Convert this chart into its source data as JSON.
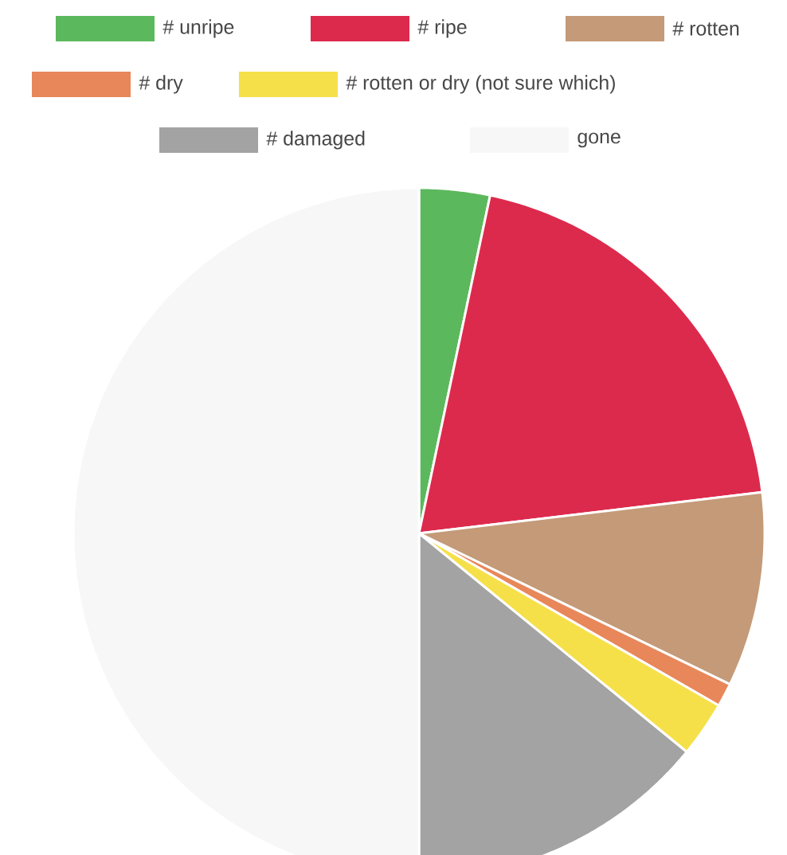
{
  "chart_data": {
    "type": "pie",
    "legend": "top",
    "categories": [
      "# unripe",
      "# ripe",
      "# rotten",
      "# dry",
      "# rotten or dry (not sure which)",
      "# damaged",
      "gone"
    ],
    "values": [
      3.3,
      19.8,
      9.1,
      1.1,
      2.6,
      14.1,
      50
    ],
    "colors": [
      "#5cb85c",
      "#dc2a4d",
      "#c49a78",
      "#e8875a",
      "#f5e04a",
      "#a3a3a3",
      "#f7f7f7"
    ]
  }
}
